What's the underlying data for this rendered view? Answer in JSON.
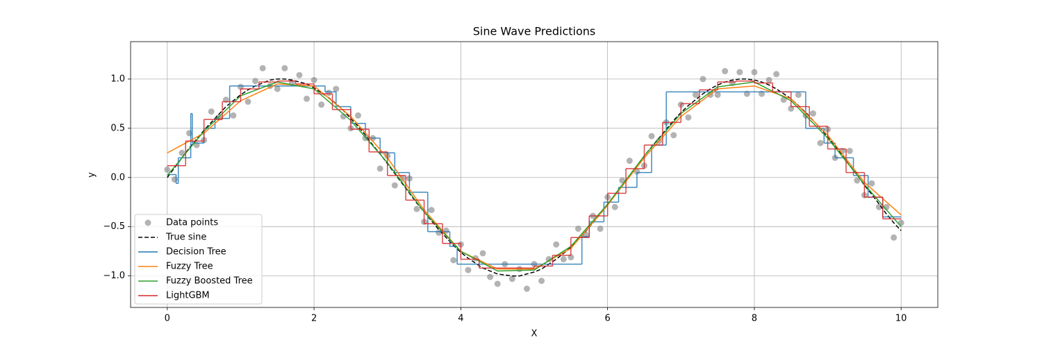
{
  "chart_data": {
    "type": "line",
    "title": "Sine Wave Predictions",
    "x_label": "X",
    "y_label": "y",
    "xlim": [
      -0.5,
      10.5
    ],
    "ylim": [
      -1.32,
      1.38
    ],
    "xticks": [
      0,
      2,
      4,
      6,
      8,
      10
    ],
    "yticks": [
      {
        "value": -1,
        "label": "−1.0"
      },
      {
        "value": -0.5,
        "label": "−0.5"
      },
      {
        "value": 0,
        "label": "0.0"
      },
      {
        "value": 0.5,
        "label": "0.5"
      },
      {
        "value": 1,
        "label": "1.0"
      }
    ],
    "grid": true,
    "legend": "lower left",
    "series": [
      {
        "name": "Data points",
        "type": "scatter",
        "color": "#808080",
        "x": [
          0,
          0.1,
          0.2,
          0.3,
          0.4,
          0.5,
          0.6,
          0.7,
          0.8,
          0.9,
          1,
          1.1,
          1.2,
          1.3,
          1.4,
          1.5,
          1.6,
          1.7,
          1.8,
          1.9,
          2,
          2.1,
          2.2,
          2.3,
          2.4,
          2.5,
          2.6,
          2.7,
          2.8,
          2.9,
          3,
          3.1,
          3.2,
          3.3,
          3.4,
          3.5,
          3.6,
          3.7,
          3.8,
          3.9,
          4,
          4.1,
          4.2,
          4.3,
          4.4,
          4.5,
          4.6,
          4.7,
          4.8,
          4.9,
          5,
          5.1,
          5.2,
          5.3,
          5.4,
          5.5,
          5.6,
          5.7,
          5.8,
          5.9,
          6,
          6.1,
          6.2,
          6.3,
          6.4,
          6.5,
          6.6,
          6.7,
          6.8,
          6.9,
          7,
          7.1,
          7.2,
          7.3,
          7.4,
          7.5,
          7.6,
          7.7,
          7.8,
          7.9,
          8,
          8.1,
          8.2,
          8.3,
          8.4,
          8.5,
          8.6,
          8.7,
          8.8,
          8.9,
          9,
          9.1,
          9.2,
          9.3,
          9.4,
          9.5,
          9.6,
          9.7,
          9.8,
          9.9,
          10
        ],
        "values": [
          0.08,
          -0.02,
          0.25,
          0.45,
          0.33,
          0.38,
          0.67,
          0.61,
          0.79,
          0.63,
          0.92,
          0.77,
          0.98,
          1.11,
          0.93,
          0.9,
          1.11,
          0.96,
          1.04,
          0.8,
          0.99,
          0.74,
          0.86,
          0.9,
          0.62,
          0.5,
          0.63,
          0.4,
          0.4,
          0.09,
          0.22,
          -0.08,
          -0.01,
          -0.01,
          -0.32,
          -0.45,
          -0.33,
          -0.56,
          -0.54,
          -0.84,
          -0.68,
          -0.94,
          -0.82,
          -0.77,
          -1.01,
          -1.08,
          -0.88,
          -1.03,
          -0.93,
          -1.13,
          -0.88,
          -1.05,
          -0.83,
          -0.68,
          -0.83,
          -0.81,
          -0.52,
          -0.58,
          -0.39,
          -0.52,
          -0.2,
          -0.3,
          -0.03,
          0.17,
          0.06,
          0.12,
          0.42,
          0.37,
          0.56,
          0.43,
          0.74,
          0.61,
          0.84,
          1,
          0.84,
          0.84,
          1.08,
          0.96,
          1.07,
          0.85,
          1.07,
          0.85,
          0.99,
          1.05,
          0.79,
          0.7,
          0.84,
          0.63,
          0.65,
          0.35,
          0.49,
          0.2,
          0.27,
          0.27,
          -0.03,
          -0.18,
          -0.06,
          -0.3,
          -0.3,
          -0.61,
          -0.46
        ]
      },
      {
        "name": "True sine",
        "type": "line",
        "linestyle": "dashed",
        "color": "#000000",
        "x": [
          0,
          0.1,
          0.2,
          0.3,
          0.4,
          0.5,
          0.6,
          0.7,
          0.8,
          0.9,
          1,
          1.1,
          1.2,
          1.3,
          1.4,
          1.5,
          1.6,
          1.7,
          1.8,
          1.9,
          2,
          2.1,
          2.2,
          2.3,
          2.4,
          2.5,
          2.6,
          2.7,
          2.8,
          2.9,
          3,
          3.1,
          3.2,
          3.3,
          3.4,
          3.5,
          3.6,
          3.7,
          3.8,
          3.9,
          4,
          4.1,
          4.2,
          4.3,
          4.4,
          4.5,
          4.6,
          4.7,
          4.8,
          4.9,
          5,
          5.1,
          5.2,
          5.3,
          5.4,
          5.5,
          5.6,
          5.7,
          5.8,
          5.9,
          6,
          6.1,
          6.2,
          6.3,
          6.4,
          6.5,
          6.6,
          6.7,
          6.8,
          6.9,
          7,
          7.1,
          7.2,
          7.3,
          7.4,
          7.5,
          7.6,
          7.7,
          7.8,
          7.9,
          8,
          8.1,
          8.2,
          8.3,
          8.4,
          8.5,
          8.6,
          8.7,
          8.8,
          8.9,
          9,
          9.1,
          9.2,
          9.3,
          9.4,
          9.5,
          9.6,
          9.7,
          9.8,
          9.9,
          10
        ],
        "values": [
          0,
          0.1,
          0.2,
          0.3,
          0.39,
          0.48,
          0.56,
          0.64,
          0.72,
          0.78,
          0.84,
          0.89,
          0.93,
          0.96,
          0.99,
          1,
          1,
          0.99,
          0.97,
          0.95,
          0.91,
          0.86,
          0.81,
          0.75,
          0.68,
          0.6,
          0.52,
          0.43,
          0.33,
          0.24,
          0.14,
          0.04,
          -0.06,
          -0.16,
          -0.26,
          -0.35,
          -0.44,
          -0.53,
          -0.61,
          -0.69,
          -0.76,
          -0.82,
          -0.87,
          -0.92,
          -0.95,
          -0.98,
          -0.99,
          -1,
          -1,
          -0.98,
          -0.96,
          -0.93,
          -0.88,
          -0.83,
          -0.77,
          -0.71,
          -0.63,
          -0.55,
          -0.46,
          -0.37,
          -0.28,
          -0.18,
          -0.08,
          0.02,
          0.12,
          0.22,
          0.31,
          0.4,
          0.49,
          0.58,
          0.66,
          0.73,
          0.79,
          0.85,
          0.9,
          0.94,
          0.97,
          0.99,
          1,
          1,
          0.99,
          0.97,
          0.94,
          0.9,
          0.85,
          0.8,
          0.73,
          0.66,
          0.58,
          0.5,
          0.41,
          0.32,
          0.22,
          0.12,
          0.03,
          -0.08,
          -0.17,
          -0.27,
          -0.37,
          -0.46,
          -0.54
        ]
      },
      {
        "name": "Decision Tree",
        "type": "step",
        "color": "#1f77b4",
        "edges": [
          0,
          0.12,
          0.15,
          0.32,
          0.34,
          0.5,
          0.65,
          0.85,
          2.15,
          2.3,
          2.5,
          2.7,
          2.9,
          3.1,
          3.3,
          3.55,
          3.85,
          3.95,
          5.65,
          5.75,
          5.95,
          6.15,
          6.4,
          6.6,
          6.8,
          8.7,
          8.95,
          9.1,
          9.35,
          9.55,
          9.75,
          10
        ],
        "values": [
          0.03,
          -0.06,
          0.2,
          0.65,
          0.35,
          0.5,
          0.6,
          0.93,
          0.87,
          0.72,
          0.55,
          0.4,
          0.25,
          0.05,
          -0.15,
          -0.55,
          -0.7,
          -0.88,
          -0.6,
          -0.45,
          -0.25,
          -0.1,
          0.05,
          0.33,
          0.87,
          0.5,
          0.35,
          0.2,
          0.02,
          -0.2,
          -0.4
        ]
      },
      {
        "name": "Fuzzy Tree",
        "type": "line",
        "color": "#ff7f0e",
        "x": [
          0,
          0.5,
          1,
          1.5,
          2,
          2.5,
          3,
          3.5,
          4,
          4.5,
          5,
          5.5,
          6,
          6.5,
          7,
          7.5,
          8,
          8.5,
          9,
          9.5,
          10
        ],
        "values": [
          0.25,
          0.45,
          0.78,
          0.95,
          0.93,
          0.62,
          0.2,
          -0.33,
          -0.75,
          -0.93,
          -0.93,
          -0.72,
          -0.28,
          0.2,
          0.62,
          0.9,
          0.93,
          0.8,
          0.43,
          -0.05,
          -0.38
        ]
      },
      {
        "name": "Fuzzy Boosted Tree",
        "type": "line",
        "color": "#2ca02c",
        "x": [
          0,
          0.5,
          1,
          1.5,
          2,
          2.5,
          3,
          3.5,
          4,
          4.5,
          5,
          5.5,
          6,
          6.5,
          7,
          7.5,
          8,
          8.5,
          9,
          9.5,
          10
        ],
        "values": [
          0.02,
          0.47,
          0.83,
          0.97,
          0.9,
          0.58,
          0.15,
          -0.35,
          -0.75,
          -0.95,
          -0.94,
          -0.7,
          -0.27,
          0.22,
          0.65,
          0.92,
          0.97,
          0.78,
          0.4,
          -0.07,
          -0.5
        ]
      },
      {
        "name": "LightGBM",
        "type": "step",
        "color": "#d62728",
        "edges": [
          0,
          0.25,
          0.5,
          0.75,
          1,
          1.25,
          1.5,
          1.75,
          2,
          2.25,
          2.5,
          2.75,
          3,
          3.25,
          3.5,
          3.75,
          4,
          4.25,
          4.5,
          4.75,
          5,
          5.25,
          5.5,
          5.75,
          6,
          6.25,
          6.5,
          6.75,
          7,
          7.25,
          7.5,
          7.75,
          8,
          8.25,
          8.5,
          8.75,
          9,
          9.25,
          9.5,
          9.75,
          10
        ],
        "values": [
          0.12,
          0.37,
          0.59,
          0.77,
          0.9,
          0.97,
          0.98,
          0.95,
          0.85,
          0.69,
          0.49,
          0.26,
          0.02,
          -0.23,
          -0.47,
          -0.67,
          -0.83,
          -0.92,
          -0.92,
          -0.92,
          -0.9,
          -0.79,
          -0.61,
          -0.39,
          -0.16,
          0.09,
          0.33,
          0.56,
          0.75,
          0.89,
          0.97,
          0.98,
          0.96,
          0.87,
          0.72,
          0.52,
          0.29,
          0.05,
          -0.2,
          -0.42
        ]
      }
    ]
  }
}
